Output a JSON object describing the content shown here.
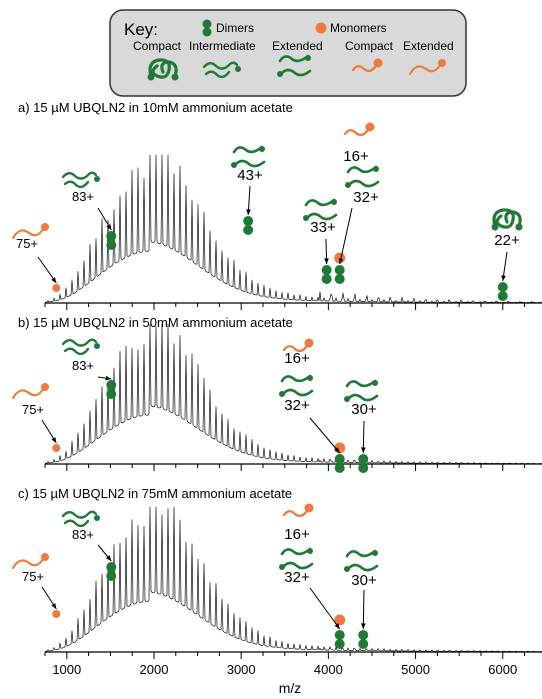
{
  "colors": {
    "dimer_green": "#1f7a35",
    "dimer_green_dark": "#145a26",
    "monomer_orange": "#f07a3c",
    "key_bg": "#d9d9d9",
    "trace": "#111111"
  },
  "key": {
    "title": "Key:",
    "dimers_label": "Dimers",
    "monomers_label": "Monomers",
    "states": [
      "Compact",
      "Intermediate",
      "Extended",
      "Compact",
      "Extended"
    ]
  },
  "chart_data": [
    {
      "type": "line",
      "title": "a) 15 µM UBQLN2 in 10mM ammonium acetate",
      "xlim": [
        750,
        6450
      ],
      "envelope_peak_mz": 1950,
      "annotations": [
        {
          "label": "75+",
          "species": "monomer",
          "conformation": "extended",
          "mz": 880
        },
        {
          "label": "83+",
          "species": "dimer",
          "conformation": "intermediate",
          "mz": 1510
        },
        {
          "label": "43+",
          "species": "dimer",
          "conformation": "extended",
          "mz": 3080
        },
        {
          "label": "33+",
          "species": "dimer",
          "conformation": "extended",
          "mz": 3980
        },
        {
          "label": "16+",
          "species": "monomer",
          "conformation": "compact",
          "mz": 4130
        },
        {
          "label": "32+",
          "species": "dimer",
          "conformation": "extended",
          "mz": 4130
        },
        {
          "label": "22+",
          "species": "dimer",
          "conformation": "compact",
          "mz": 6000
        }
      ]
    },
    {
      "type": "line",
      "title": "b) 15 µM UBQLN2 in 50mM ammonium acetate",
      "xlim": [
        750,
        6450
      ],
      "envelope_peak_mz": 1950,
      "annotations": [
        {
          "label": "75+",
          "species": "monomer",
          "conformation": "extended",
          "mz": 880
        },
        {
          "label": "83+",
          "species": "dimer",
          "conformation": "intermediate",
          "mz": 1510
        },
        {
          "label": "16+",
          "species": "monomer",
          "conformation": "compact",
          "mz": 4130
        },
        {
          "label": "32+",
          "species": "dimer",
          "conformation": "extended",
          "mz": 4130
        },
        {
          "label": "30+",
          "species": "dimer",
          "conformation": "extended",
          "mz": 4400
        }
      ]
    },
    {
      "type": "line",
      "title": "c) 15 µM UBQLN2 in 75mM ammonium acetate",
      "xlim": [
        750,
        6450
      ],
      "xlabel": "m/z",
      "x_ticks": [
        1000,
        2000,
        3000,
        4000,
        5000,
        6000
      ],
      "envelope_peak_mz": 1950,
      "annotations": [
        {
          "label": "75+",
          "species": "monomer",
          "conformation": "extended",
          "mz": 880
        },
        {
          "label": "83+",
          "species": "dimer",
          "conformation": "intermediate",
          "mz": 1510
        },
        {
          "label": "16+",
          "species": "monomer",
          "conformation": "compact",
          "mz": 4130
        },
        {
          "label": "32+",
          "species": "dimer",
          "conformation": "extended",
          "mz": 4130
        },
        {
          "label": "30+",
          "species": "dimer",
          "conformation": "extended",
          "mz": 4400
        }
      ]
    }
  ]
}
